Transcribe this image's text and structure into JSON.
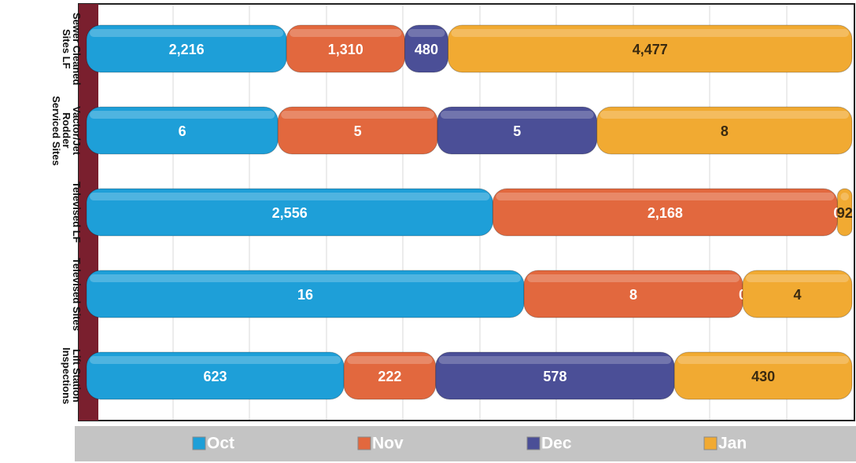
{
  "chart_data": {
    "type": "bar",
    "orientation": "horizontal",
    "stacked": "percent",
    "grid": true,
    "legend": "bottom",
    "categories": [
      "Sewer Cleaned Sites LF",
      "Vactor/Jet Rodder Serviced Sites",
      "Televised LF",
      "Televised Sites",
      "Lift Station Inspections"
    ],
    "series": [
      {
        "name": "Oct",
        "color": "#1e9fd8",
        "values": [
          2216,
          6,
          2556,
          16,
          623
        ],
        "value_labels": [
          "2,216",
          "6",
          "2,556",
          "16",
          "623"
        ]
      },
      {
        "name": "Nov",
        "color": "#e2683e",
        "values": [
          1310,
          5,
          2168,
          8,
          222
        ],
        "value_labels": [
          "1,310",
          "5",
          "2,168",
          "8",
          "222"
        ]
      },
      {
        "name": "Dec",
        "color": "#4b4f97",
        "values": [
          480,
          5,
          0,
          0,
          578
        ],
        "value_labels": [
          "480",
          "5",
          "0",
          "0",
          "578"
        ]
      },
      {
        "name": "Jan",
        "color": "#f1aa32",
        "values": [
          4477,
          8,
          92,
          4,
          430
        ],
        "value_labels": [
          "4,477",
          "8",
          "92",
          "4",
          "430"
        ]
      }
    ]
  }
}
